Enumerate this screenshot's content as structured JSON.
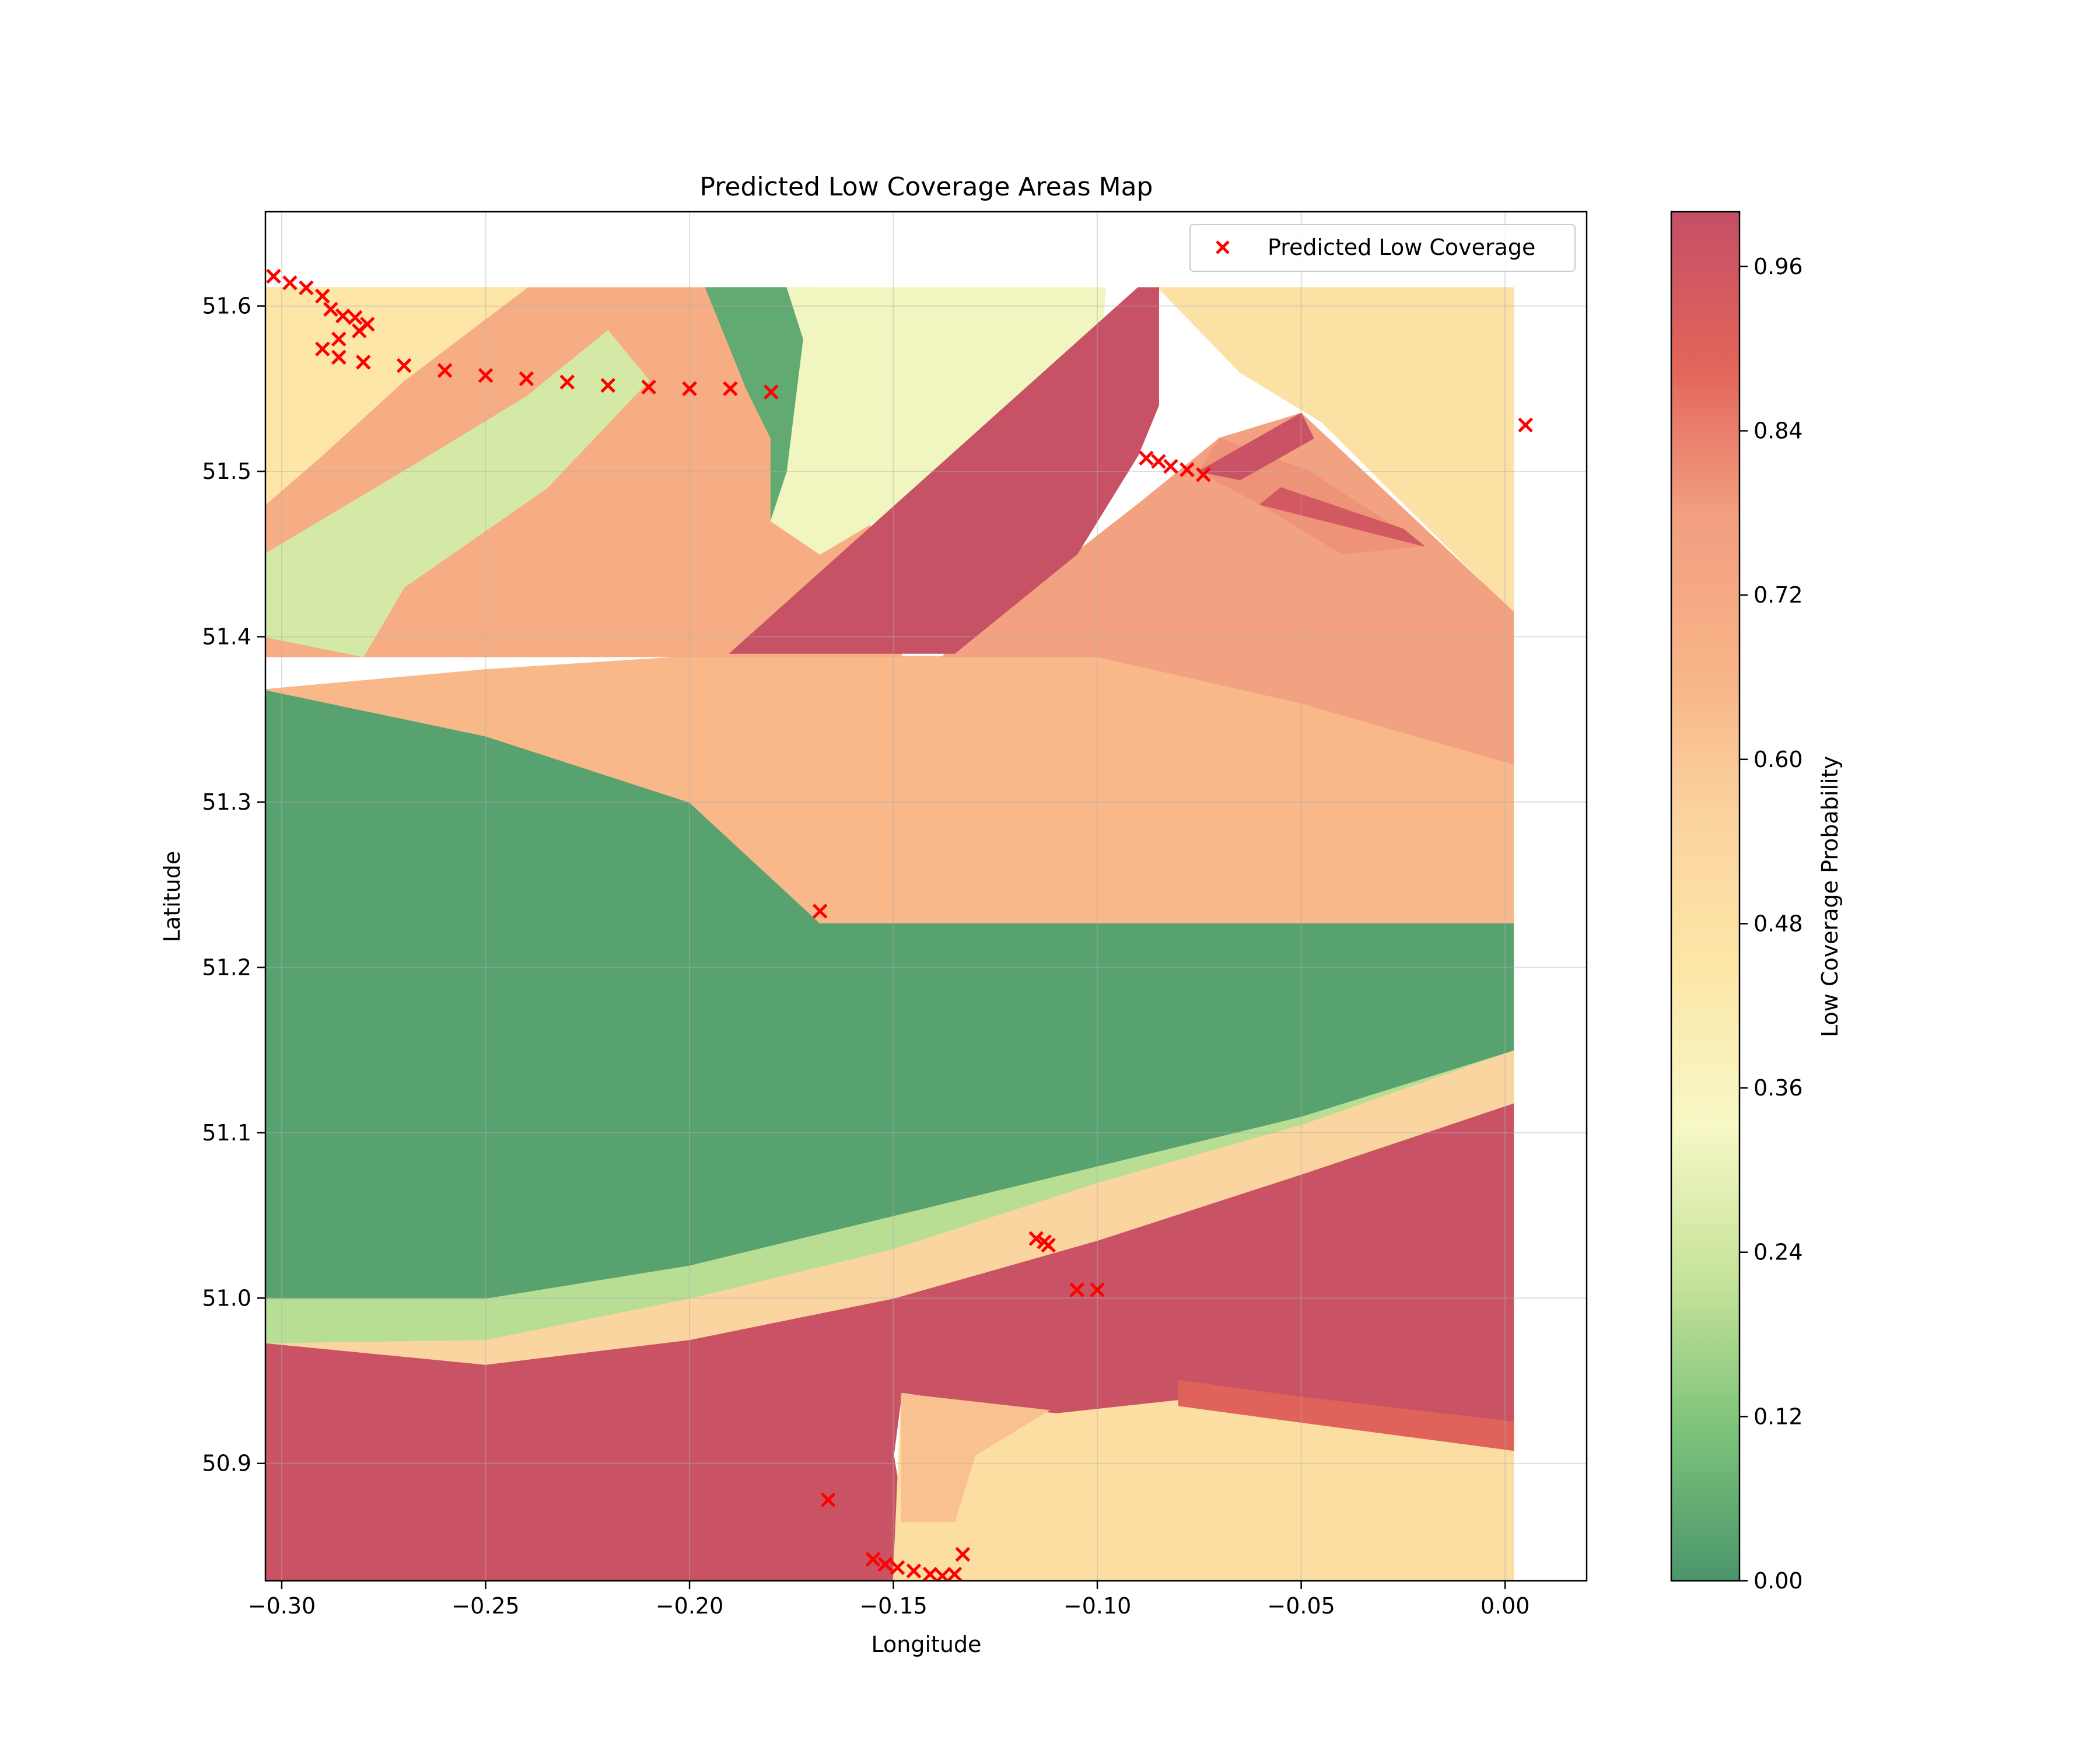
{
  "chart_data": {
    "type": "heatmap",
    "title": "Predicted Low Coverage Areas Map",
    "xlabel": "Longitude",
    "ylabel": "Latitude",
    "xlim": [
      -0.304,
      0.02
    ],
    "ylim": [
      50.829,
      51.657
    ],
    "field_extent": {
      "x": [
        -0.304,
        0.002
      ],
      "y": [
        50.829,
        51.611
      ]
    },
    "xticks": [
      -0.3,
      -0.25,
      -0.2,
      -0.15,
      -0.1,
      -0.05,
      0.0
    ],
    "xtick_labels": [
      "−0.30",
      "−0.25",
      "−0.20",
      "−0.15",
      "−0.10",
      "−0.05",
      "0.00"
    ],
    "yticks": [
      50.9,
      51.0,
      51.1,
      51.2,
      51.3,
      51.4,
      51.5,
      51.6
    ],
    "ytick_labels": [
      "50.9",
      "51.0",
      "51.1",
      "51.2",
      "51.3",
      "51.4",
      "51.5",
      "51.6"
    ],
    "grid": true,
    "legend": {
      "placement": "top-right",
      "entries": [
        "Predicted Low Coverage"
      ]
    },
    "colorbar": {
      "label": "Low Coverage Probability",
      "range": [
        0,
        1
      ],
      "ticks": [
        0.0,
        0.12,
        0.24,
        0.36,
        0.48,
        0.6,
        0.72,
        0.84,
        0.96
      ],
      "tick_labels": [
        "0.00",
        "0.12",
        "0.24",
        "0.36",
        "0.48",
        "0.60",
        "0.72",
        "0.84",
        "0.96"
      ],
      "colormap": "RdYlGn_r",
      "colors": [
        "#4b956b",
        "#7cc47a",
        "#c7e49a",
        "#f7f8c6",
        "#fde7a8",
        "#fbd49e",
        "#f8b386",
        "#f29f80",
        "#e2645a",
        "#c44f66"
      ]
    },
    "regions": [
      {
        "name": "south band",
        "value": 0.98,
        "points": [
          [
            -0.304,
            50.829
          ],
          [
            -0.304,
            50.973
          ],
          [
            -0.25,
            50.96
          ],
          [
            -0.2,
            50.975
          ],
          [
            -0.15,
            51.0
          ],
          [
            -0.1,
            51.035
          ],
          [
            -0.05,
            51.075
          ],
          [
            0.002,
            51.118
          ],
          [
            0.002,
            50.907
          ],
          [
            -0.05,
            50.925
          ],
          [
            -0.08,
            50.935
          ],
          [
            -0.11,
            50.93
          ],
          [
            -0.148,
            50.943
          ],
          [
            -0.15,
            50.905
          ],
          [
            -0.145,
            50.829
          ]
        ]
      },
      {
        "name": "south-east light area",
        "value": 0.5,
        "points": [
          [
            -0.15,
            50.829
          ],
          [
            -0.148,
            50.94
          ],
          [
            -0.11,
            50.93
          ],
          [
            -0.08,
            50.938
          ],
          [
            -0.05,
            50.925
          ],
          [
            0.002,
            50.908
          ],
          [
            0.002,
            50.829
          ]
        ]
      },
      {
        "name": "south inner pocket",
        "value": 0.62,
        "points": [
          [
            -0.148,
            50.865
          ],
          [
            -0.148,
            50.942
          ],
          [
            -0.112,
            50.932
          ],
          [
            -0.13,
            50.905
          ],
          [
            -0.135,
            50.865
          ]
        ]
      },
      {
        "name": "east red strip",
        "value": 0.9,
        "points": [
          [
            -0.08,
            50.935
          ],
          [
            -0.05,
            50.925
          ],
          [
            0.002,
            50.908
          ],
          [
            0.002,
            50.925
          ],
          [
            -0.05,
            50.94
          ],
          [
            -0.08,
            50.95
          ]
        ]
      },
      {
        "name": "yellow diagonal band",
        "value": 0.55,
        "points": [
          [
            -0.304,
            50.973
          ],
          [
            -0.25,
            50.975
          ],
          [
            -0.2,
            51.0
          ],
          [
            -0.15,
            51.03
          ],
          [
            -0.1,
            51.07
          ],
          [
            -0.05,
            51.105
          ],
          [
            0.002,
            51.15
          ],
          [
            0.002,
            51.118
          ],
          [
            -0.05,
            51.075
          ],
          [
            -0.1,
            51.035
          ],
          [
            -0.15,
            51.0
          ],
          [
            -0.2,
            50.975
          ],
          [
            -0.25,
            50.96
          ]
        ]
      },
      {
        "name": "south-west green edge",
        "value": 0.2,
        "points": [
          [
            -0.304,
            50.973
          ],
          [
            -0.304,
            51.0
          ],
          [
            -0.25,
            51.0
          ],
          [
            -0.2,
            51.02
          ],
          [
            -0.15,
            51.05
          ],
          [
            -0.1,
            51.08
          ],
          [
            -0.05,
            51.11
          ],
          [
            0.002,
            51.15
          ],
          [
            -0.05,
            51.105
          ],
          [
            -0.1,
            51.07
          ],
          [
            -0.15,
            51.03
          ],
          [
            -0.2,
            51.0
          ],
          [
            -0.25,
            50.975
          ]
        ]
      },
      {
        "name": "central green band",
        "value": 0.03,
        "points": [
          [
            -0.304,
            51.0
          ],
          [
            -0.304,
            51.368
          ],
          [
            -0.25,
            51.34
          ],
          [
            -0.2,
            51.3
          ],
          [
            -0.168,
            51.227
          ],
          [
            0.002,
            51.227
          ],
          [
            0.002,
            51.15
          ],
          [
            -0.05,
            51.11
          ],
          [
            -0.1,
            51.08
          ],
          [
            -0.15,
            51.05
          ],
          [
            -0.2,
            51.02
          ],
          [
            -0.25,
            51.0
          ]
        ]
      },
      {
        "name": "central orange band",
        "value": 0.65,
        "points": [
          [
            -0.304,
            51.368
          ],
          [
            -0.25,
            51.38
          ],
          [
            -0.2,
            51.388
          ],
          [
            -0.15,
            51.388
          ],
          [
            -0.1,
            51.388
          ],
          [
            -0.05,
            51.36
          ],
          [
            0.002,
            51.323
          ],
          [
            0.002,
            51.227
          ],
          [
            -0.168,
            51.227
          ],
          [
            -0.2,
            51.3
          ],
          [
            -0.25,
            51.34
          ]
        ]
      },
      {
        "name": "north-west band",
        "value": 0.7,
        "points": [
          [
            -0.304,
            51.388
          ],
          [
            -0.304,
            51.611
          ],
          [
            -0.18,
            51.611
          ],
          [
            -0.17,
            51.611
          ],
          [
            -0.148,
            51.388
          ]
        ]
      },
      {
        "name": "north-west green stripe",
        "value": 0.25,
        "points": [
          [
            -0.304,
            51.4
          ],
          [
            -0.304,
            51.45
          ],
          [
            -0.27,
            51.5
          ],
          [
            -0.24,
            51.545
          ],
          [
            -0.22,
            51.585
          ],
          [
            -0.21,
            51.555
          ],
          [
            -0.235,
            51.49
          ],
          [
            -0.27,
            51.43
          ],
          [
            -0.28,
            51.388
          ]
        ]
      },
      {
        "name": "north-west corner",
        "value": 0.45,
        "points": [
          [
            -0.304,
            51.48
          ],
          [
            -0.304,
            51.611
          ],
          [
            -0.24,
            51.611
          ],
          [
            -0.27,
            51.555
          ],
          [
            -0.29,
            51.51
          ]
        ]
      },
      {
        "name": "north-central dark green",
        "value": 0.05,
        "points": [
          [
            -0.196,
            51.611
          ],
          [
            -0.186,
            51.55
          ],
          [
            -0.18,
            51.52
          ],
          [
            -0.18,
            51.47
          ],
          [
            -0.176,
            51.5
          ],
          [
            -0.172,
            51.58
          ],
          [
            -0.176,
            51.611
          ]
        ]
      },
      {
        "name": "north light green",
        "value": 0.32,
        "points": [
          [
            -0.176,
            51.611
          ],
          [
            -0.172,
            51.58
          ],
          [
            -0.176,
            51.5
          ],
          [
            -0.18,
            51.47
          ],
          [
            -0.168,
            51.45
          ],
          [
            -0.1,
            51.55
          ],
          [
            -0.098,
            51.611
          ]
        ]
      },
      {
        "name": "north-east light yellow",
        "value": 0.48,
        "points": [
          [
            -0.085,
            51.611
          ],
          [
            -0.065,
            51.56
          ],
          [
            -0.045,
            51.53
          ],
          [
            0.002,
            51.415
          ],
          [
            0.002,
            51.611
          ]
        ]
      },
      {
        "name": "east salmon area",
        "value": 0.76,
        "points": [
          [
            -0.138,
            51.388
          ],
          [
            -0.09,
            51.48
          ],
          [
            -0.07,
            51.52
          ],
          [
            -0.05,
            51.535
          ],
          [
            0.002,
            51.415
          ],
          [
            0.002,
            51.323
          ],
          [
            -0.05,
            51.36
          ],
          [
            -0.1,
            51.388
          ]
        ]
      },
      {
        "name": "north-east salmon strip",
        "value": 0.8,
        "points": [
          [
            -0.07,
            51.52
          ],
          [
            -0.048,
            51.5
          ],
          [
            -0.02,
            51.455
          ],
          [
            -0.04,
            51.45
          ],
          [
            -0.06,
            51.48
          ],
          [
            -0.075,
            51.5
          ]
        ]
      },
      {
        "name": "north crimson diagonal",
        "value": 0.99,
        "points": [
          [
            -0.19,
            51.39
          ],
          [
            -0.09,
            51.611
          ],
          [
            -0.085,
            51.611
          ],
          [
            -0.085,
            51.54
          ],
          [
            -0.09,
            51.51
          ],
          [
            -0.105,
            51.45
          ],
          [
            -0.135,
            51.39
          ]
        ]
      },
      {
        "name": "north-east crimson streak",
        "value": 0.98,
        "points": [
          [
            -0.075,
            51.5
          ],
          [
            -0.05,
            51.535
          ],
          [
            -0.047,
            51.52
          ],
          [
            -0.065,
            51.495
          ]
        ]
      },
      {
        "name": "east crimson streak",
        "value": 0.95,
        "points": [
          [
            -0.06,
            51.48
          ],
          [
            -0.02,
            51.455
          ],
          [
            -0.025,
            51.465
          ],
          [
            -0.055,
            51.49
          ]
        ]
      }
    ],
    "series": [
      {
        "name": "Predicted Low Coverage",
        "marker": "x",
        "color": "#ff0000",
        "points": [
          [
            -0.302,
            51.618
          ],
          [
            -0.298,
            51.614
          ],
          [
            -0.294,
            51.611
          ],
          [
            -0.29,
            51.606
          ],
          [
            -0.288,
            51.598
          ],
          [
            -0.285,
            51.594
          ],
          [
            -0.282,
            51.593
          ],
          [
            -0.279,
            51.589
          ],
          [
            -0.281,
            51.585
          ],
          [
            -0.286,
            51.58
          ],
          [
            -0.29,
            51.574
          ],
          [
            -0.286,
            51.569
          ],
          [
            -0.28,
            51.566
          ],
          [
            -0.27,
            51.564
          ],
          [
            -0.26,
            51.561
          ],
          [
            -0.25,
            51.558
          ],
          [
            -0.24,
            51.556
          ],
          [
            -0.23,
            51.554
          ],
          [
            -0.22,
            51.552
          ],
          [
            -0.21,
            51.551
          ],
          [
            -0.2,
            51.55
          ],
          [
            -0.19,
            51.55
          ],
          [
            -0.18,
            51.548
          ],
          [
            0.005,
            51.528
          ],
          [
            -0.088,
            51.508
          ],
          [
            -0.085,
            51.506
          ],
          [
            -0.082,
            51.503
          ],
          [
            -0.078,
            51.501
          ],
          [
            -0.074,
            51.498
          ],
          [
            -0.168,
            51.234
          ],
          [
            -0.115,
            51.036
          ],
          [
            -0.113,
            51.034
          ],
          [
            -0.112,
            51.032
          ],
          [
            -0.105,
            51.005
          ],
          [
            -0.1,
            51.005
          ],
          [
            -0.166,
            50.878
          ],
          [
            -0.155,
            50.842
          ],
          [
            -0.152,
            50.839
          ],
          [
            -0.149,
            50.837
          ],
          [
            -0.145,
            50.835
          ],
          [
            -0.141,
            50.833
          ],
          [
            -0.138,
            50.832
          ],
          [
            -0.135,
            50.833
          ],
          [
            -0.133,
            50.845
          ]
        ]
      }
    ]
  }
}
